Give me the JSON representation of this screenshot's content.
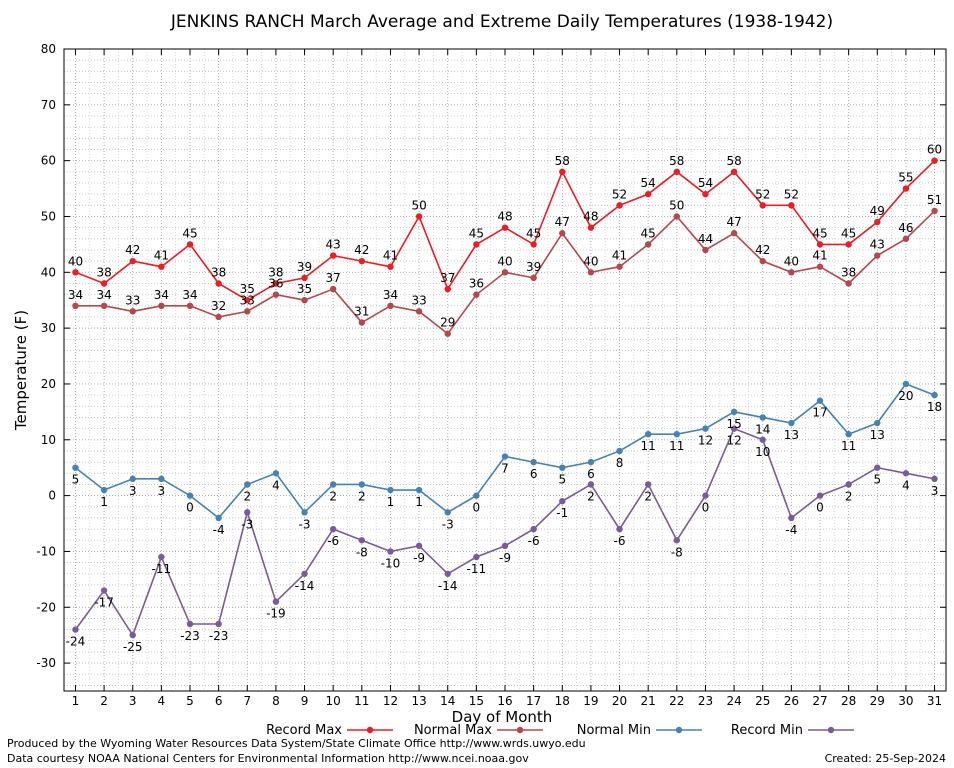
{
  "footer": {
    "produced_by": "Produced by the Wyoming Water Resources Data System/State Climate Office http://www.wrds.uwyo.edu",
    "courtesy": "Data courtesy NOAA National Centers for Environmental Information http://www.ncei.noaa.gov",
    "created": "Created:  25-Sep-2024"
  },
  "chart_data": {
    "type": "line",
    "title": "JENKINS RANCH March Average and Extreme Daily Temperatures (1938-1942)",
    "xlabel": "Day of Month",
    "ylabel": "Temperature (F)",
    "xlim": [
      0.6,
      31.4
    ],
    "ylim": [
      -35,
      80
    ],
    "grid": true,
    "legend_placement": "bottom",
    "x": [
      1,
      2,
      3,
      4,
      5,
      6,
      7,
      8,
      9,
      10,
      11,
      12,
      13,
      14,
      15,
      16,
      17,
      18,
      19,
      20,
      21,
      22,
      23,
      24,
      25,
      26,
      27,
      28,
      29,
      30,
      31
    ],
    "x_ticks": [
      1,
      2,
      3,
      4,
      5,
      6,
      7,
      8,
      9,
      10,
      11,
      12,
      13,
      14,
      15,
      16,
      17,
      18,
      19,
      20,
      21,
      22,
      23,
      24,
      25,
      26,
      27,
      28,
      29,
      30,
      31
    ],
    "y_ticks": [
      -30,
      -20,
      -10,
      0,
      10,
      20,
      30,
      40,
      50,
      60,
      70,
      80
    ],
    "series": [
      {
        "name": "Record Max",
        "color": "#ee1c24",
        "label_position": "above",
        "values": [
          40,
          38,
          42,
          41,
          45,
          38,
          35,
          38,
          39,
          43,
          42,
          41,
          50,
          37,
          45,
          48,
          45,
          58,
          48,
          52,
          54,
          58,
          54,
          58,
          52,
          52,
          45,
          45,
          49,
          55,
          60
        ]
      },
      {
        "name": "Normal Max",
        "color": "#b5474d",
        "label_position": "above",
        "values": [
          34,
          34,
          33,
          34,
          34,
          32,
          33,
          36,
          35,
          37,
          31,
          34,
          33,
          29,
          36,
          40,
          39,
          47,
          40,
          41,
          45,
          50,
          44,
          47,
          42,
          40,
          41,
          38,
          43,
          46,
          51
        ]
      },
      {
        "name": "Normal Min",
        "color": "#4682b4",
        "label_position": "below",
        "values": [
          5,
          1,
          3,
          3,
          0,
          -4,
          2,
          4,
          -3,
          2,
          2,
          1,
          1,
          -3,
          0,
          7,
          6,
          5,
          6,
          8,
          11,
          11,
          12,
          15,
          14,
          13,
          17,
          11,
          13,
          20,
          18
        ]
      },
      {
        "name": "Record Min",
        "color": "#7a5a9b",
        "label_position": "below",
        "values": [
          -24,
          -17,
          -25,
          -11,
          -23,
          -23,
          -3,
          -19,
          -14,
          -6,
          -8,
          -10,
          -9,
          -14,
          -11,
          -9,
          -6,
          -1,
          2,
          -6,
          2,
          -8,
          0,
          12,
          10,
          -4,
          0,
          2,
          5,
          4,
          3
        ]
      }
    ]
  }
}
